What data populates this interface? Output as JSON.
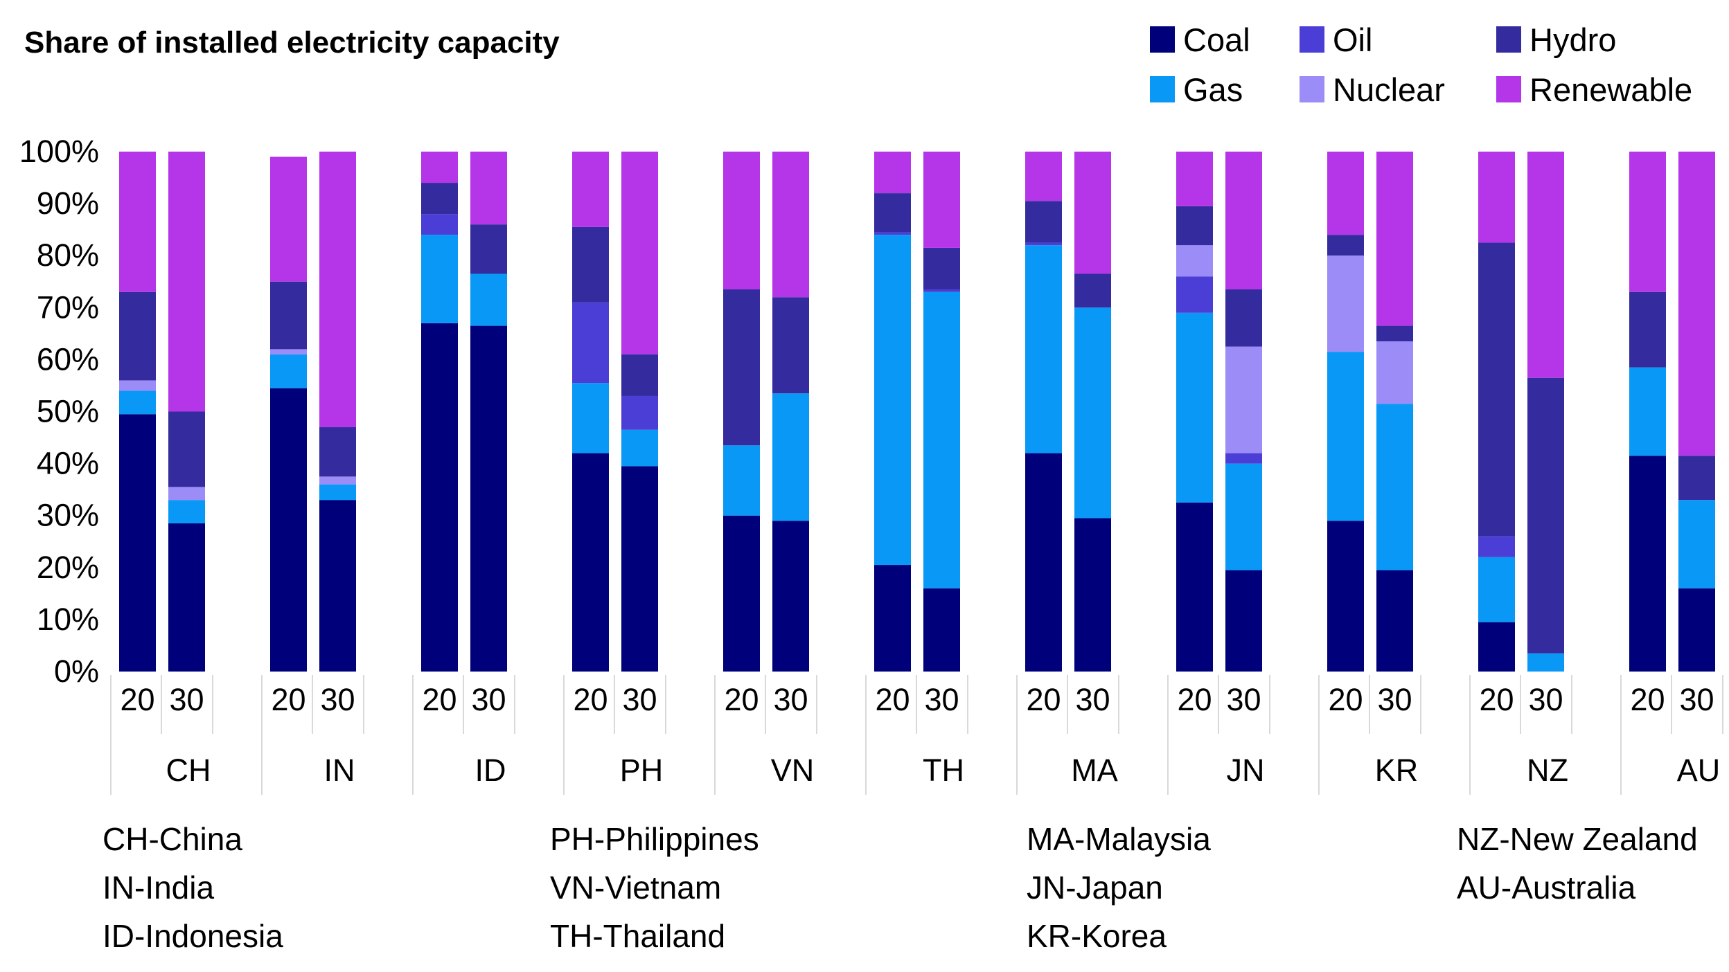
{
  "chart_data": {
    "type": "bar",
    "stacked": true,
    "title": "Share of installed electricity capacity",
    "xlabel": "",
    "ylabel": "",
    "ylim": [
      0,
      100
    ],
    "y_ticks": [
      "0%",
      "10%",
      "20%",
      "30%",
      "40%",
      "50%",
      "60%",
      "70%",
      "80%",
      "90%",
      "100%"
    ],
    "y_tick_values": [
      0,
      10,
      20,
      30,
      40,
      50,
      60,
      70,
      80,
      90,
      100
    ],
    "legend_position": "top-right",
    "grid": false,
    "groups": [
      "CH",
      "IN",
      "ID",
      "PH",
      "VN",
      "TH",
      "MA",
      "JN",
      "KR",
      "NZ",
      "AU"
    ],
    "sub_categories": [
      "20",
      "30"
    ],
    "series": [
      {
        "name": "Coal",
        "color": "#00007a",
        "values": [
          49.5,
          28.5,
          54.5,
          33,
          67,
          66.5,
          42,
          39.5,
          30,
          29,
          20.5,
          16,
          42,
          29.5,
          32.5,
          19.5,
          29,
          19.5,
          9.5,
          0,
          41.5,
          16
        ]
      },
      {
        "name": "Gas",
        "color": "#0a98f7",
        "values": [
          4.5,
          4.5,
          6.5,
          3,
          17,
          10,
          13.5,
          7,
          13.5,
          24.5,
          63.5,
          57,
          40,
          40.5,
          36.5,
          20.5,
          32.5,
          32,
          12.5,
          3.5,
          17,
          17
        ]
      },
      {
        "name": "Oil",
        "color": "#4a3ed6",
        "values": [
          0,
          0,
          0,
          0,
          4,
          0,
          15.5,
          6.5,
          0,
          0,
          0.5,
          0.5,
          0.5,
          0,
          7,
          2,
          0,
          0,
          4,
          0,
          0,
          0
        ]
      },
      {
        "name": "Nuclear",
        "color": "#9c8cf8",
        "values": [
          2,
          2.5,
          1,
          1.5,
          0,
          0,
          0,
          0,
          0,
          0,
          0,
          0,
          0,
          0,
          6,
          20.5,
          18.5,
          12,
          0,
          0,
          0,
          0
        ]
      },
      {
        "name": "Hydro",
        "color": "#342c9e",
        "values": [
          17,
          14.5,
          13,
          9.5,
          6,
          9.5,
          14.5,
          8,
          30,
          18.5,
          7.5,
          8,
          8,
          6.5,
          7.5,
          11,
          4,
          3,
          56.5,
          53,
          14.5,
          8.5
        ]
      },
      {
        "name": "Renewable",
        "color": "#b536e8",
        "values": [
          27,
          50,
          24,
          53,
          6,
          14,
          14.5,
          39,
          26.5,
          28,
          8,
          18.5,
          9.5,
          23.5,
          10.5,
          26.5,
          16,
          33.5,
          17.5,
          43.5,
          27,
          58.5
        ]
      }
    ],
    "legend_order": [
      "Coal",
      "Oil",
      "Hydro",
      "Gas",
      "Nuclear",
      "Renewable"
    ],
    "notes": [
      [
        "CH-China",
        "IN-India",
        "ID-Indonesia"
      ],
      [
        "PH-Philippines",
        "VN-Vietnam",
        "TH-Thailand"
      ],
      [
        "MA-Malaysia",
        "JN-Japan",
        "KR-Korea"
      ],
      [
        "NZ-New Zealand",
        "AU-Australia"
      ]
    ]
  }
}
